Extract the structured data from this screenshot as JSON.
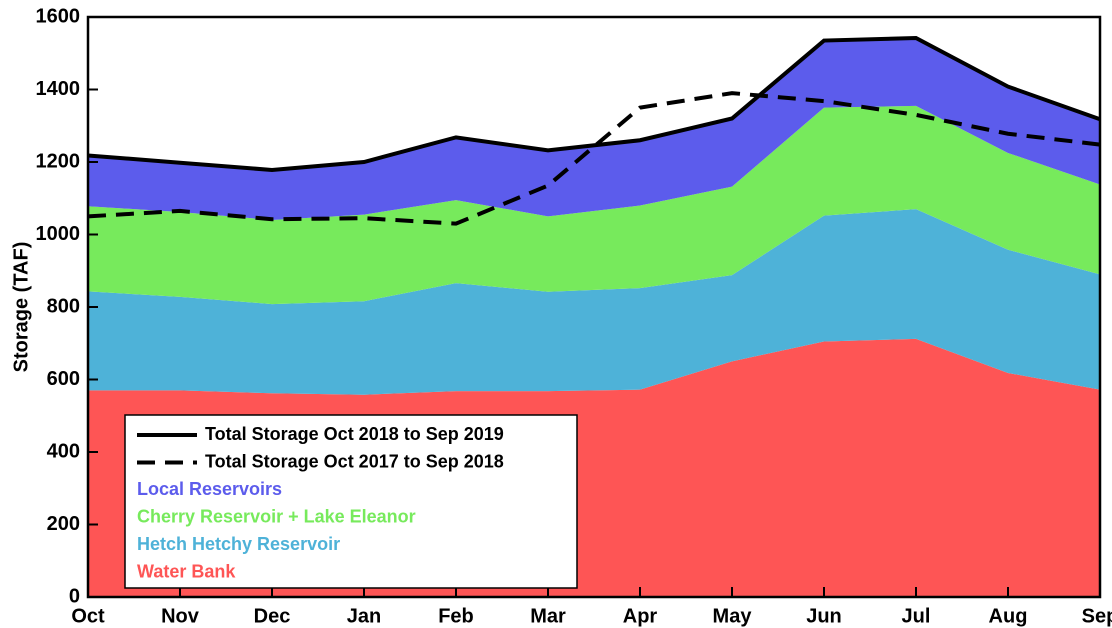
{
  "chart_data": {
    "type": "stacked-area",
    "y_label": "Storage (TAF)",
    "categories": [
      "Oct",
      "Nov",
      "Dec",
      "Jan",
      "Feb",
      "Mar",
      "Apr",
      "May",
      "Jun",
      "Jul",
      "Aug",
      "Sep"
    ],
    "series": [
      {
        "name": "Total Storage Oct 2018 to Sep 2019",
        "type": "line",
        "linestyle": "solid",
        "color": "#000000",
        "values": [
          1218,
          1198,
          1178,
          1200,
          1268,
          1232,
          1260,
          1320,
          1535,
          1542,
          1408,
          1318
        ]
      },
      {
        "name": "Total Storage Oct 2017 to Sep 2018",
        "type": "line",
        "linestyle": "dashed",
        "color": "#000000",
        "values": [
          1050,
          1065,
          1042,
          1045,
          1030,
          1135,
          1350,
          1390,
          1368,
          1330,
          1278,
          1248
        ]
      },
      {
        "name": "Local Reservoirs",
        "type": "area",
        "color": "#5c5cec",
        "values": [
          140,
          136,
          138,
          145,
          173,
          182,
          180,
          188,
          185,
          187,
          183,
          180
        ]
      },
      {
        "name": "Cherry Reservoir + Lake Eleanor",
        "type": "area",
        "color": "#77ea5c",
        "values": [
          235,
          234,
          232,
          239,
          229,
          208,
          228,
          244,
          298,
          285,
          267,
          248
        ]
      },
      {
        "name": "Hetch Hetchy Reservoir",
        "type": "area",
        "color": "#4eb2d8",
        "values": [
          273,
          258,
          246,
          258,
          298,
          274,
          280,
          238,
          347,
          358,
          340,
          318
        ]
      },
      {
        "name": "Water Bank",
        "type": "area",
        "color": "#fe5555",
        "values": [
          570,
          570,
          562,
          558,
          568,
          568,
          572,
          650,
          705,
          712,
          618,
          572
        ]
      }
    ],
    "ylim": [
      0,
      1600
    ],
    "yticks": [
      0,
      200,
      400,
      600,
      800,
      1000,
      1200,
      1400,
      1600
    ],
    "legend": "lower left"
  }
}
